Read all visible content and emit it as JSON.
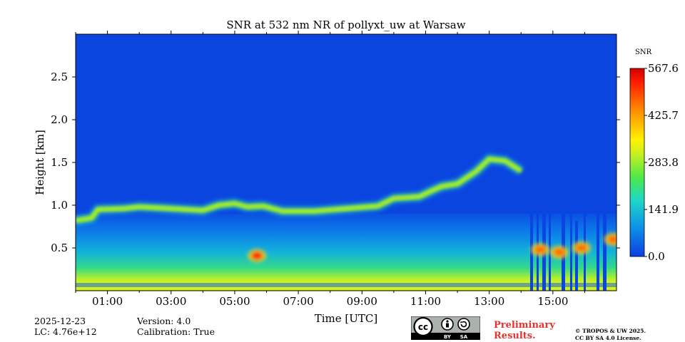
{
  "chart_data": {
    "type": "heatmap",
    "title": "SNR at 532 nm NR of pollyxt_uw at Warsaw",
    "xlabel": "Time [UTC]",
    "ylabel": "Height [km]",
    "x_range_hours": [
      0,
      17
    ],
    "x_major_ticks_hours": [
      1,
      3,
      5,
      7,
      9,
      11,
      13,
      15
    ],
    "x_tick_labels": [
      "01:00",
      "03:00",
      "05:00",
      "07:00",
      "09:00",
      "11:00",
      "13:00",
      "15:00"
    ],
    "x_minor_ticks_hours": [
      0,
      2,
      4,
      6,
      8,
      10,
      12,
      14,
      16
    ],
    "ylim_km": [
      0,
      3.0
    ],
    "y_ticks": [
      0.5,
      1.0,
      1.5,
      2.0,
      2.5
    ],
    "y_tick_labels": [
      "0.5",
      "1.0",
      "1.5",
      "2.0",
      "2.5"
    ],
    "colorbar": {
      "label": "SNR",
      "min": 0.0,
      "max": 567.6,
      "ticks": [
        0.0,
        141.9,
        283.8,
        425.7,
        567.6
      ],
      "tick_labels": [
        "0.0",
        "141.9",
        "283.8",
        "425.7",
        "567.6"
      ],
      "colormap": [
        "#0b3fe0",
        "#0d8fe8",
        "#1ed8c6",
        "#4de84a",
        "#cbf01f",
        "#fff200",
        "#ff8a00",
        "#ff2000",
        "#d40000"
      ]
    },
    "layer_top_km": [
      [
        0.0,
        0.82
      ],
      [
        0.5,
        0.85
      ],
      [
        0.7,
        0.95
      ],
      [
        1.5,
        0.96
      ],
      [
        2.0,
        0.98
      ],
      [
        3.0,
        0.96
      ],
      [
        4.0,
        0.94
      ],
      [
        4.5,
        1.0
      ],
      [
        5.0,
        1.02
      ],
      [
        5.4,
        0.98
      ],
      [
        5.9,
        0.99
      ],
      [
        6.5,
        0.93
      ],
      [
        7.5,
        0.93
      ],
      [
        8.5,
        0.96
      ],
      [
        9.5,
        0.99
      ],
      [
        10.0,
        1.08
      ],
      [
        10.8,
        1.1
      ],
      [
        11.2,
        1.17
      ],
      [
        11.5,
        1.22
      ],
      [
        12.0,
        1.25
      ],
      [
        12.6,
        1.4
      ],
      [
        13.0,
        1.54
      ],
      [
        13.5,
        1.52
      ],
      [
        14.0,
        1.4
      ]
    ],
    "hotspots": [
      {
        "x_hours": 5.7,
        "y_km": 0.41,
        "snr": 567.6
      },
      {
        "x_hours": 14.6,
        "y_km": 0.48,
        "snr": 420
      },
      {
        "x_hours": 15.2,
        "y_km": 0.45,
        "snr": 440
      },
      {
        "x_hours": 15.9,
        "y_km": 0.5,
        "snr": 400
      },
      {
        "x_hours": 16.9,
        "y_km": 0.6,
        "snr": 380
      }
    ]
  },
  "footer": {
    "date": "2025-12-23",
    "lc": "LC: 4.76e+12",
    "version": "Version: 4.0",
    "calibration": "Calibration: True",
    "preliminary_line1": "Preliminary",
    "preliminary_line2": "Results.",
    "copyright_line1": "© TROPOS & UW 2025.",
    "copyright_line2": "CC BY SA 4.0 License.",
    "cc_label": "cc",
    "by_label": "BY",
    "sa_label": "SA"
  }
}
